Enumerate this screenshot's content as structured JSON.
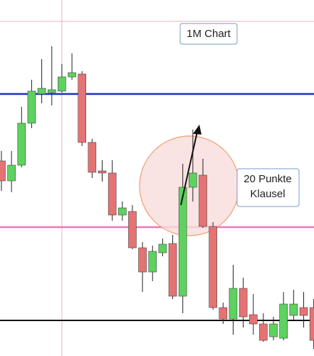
{
  "chart_data": {
    "type": "candlestick",
    "annotations": [
      "1M Chart",
      [
        "20 Punkte",
        "Klausel"
      ]
    ],
    "open": [
      274,
      246,
      268,
      327,
      368,
      370,
      372,
      392,
      396,
      300,
      260,
      257,
      198,
      203,
      152,
      118,
      145,
      158,
      84,
      237,
      254,
      182,
      68,
      52,
      95,
      58,
      45,
      27,
      25,
      57,
      68,
      68
    ],
    "high": [
      288,
      288,
      350,
      388,
      417,
      435,
      410,
      425,
      400,
      305,
      275,
      275,
      217,
      212,
      160,
      155,
      165,
      170,
      270,
      318,
      277,
      188,
      75,
      128,
      110,
      87,
      60,
      55,
      90,
      93,
      90,
      80
    ],
    "low": [
      232,
      230,
      265,
      320,
      355,
      352,
      370,
      388,
      295,
      250,
      245,
      190,
      190,
      150,
      90,
      105,
      140,
      80,
      60,
      217,
      180,
      65,
      45,
      30,
      40,
      30,
      20,
      22,
      22,
      50,
      40,
      10
    ],
    "close": [
      246,
      268,
      327,
      372,
      376,
      374,
      392,
      398,
      300,
      258,
      257,
      198,
      208,
      152,
      118,
      147,
      157,
      84,
      237,
      257,
      182,
      68,
      52,
      95,
      55,
      45,
      22,
      45,
      73,
      73,
      57,
      22
    ],
    "up_color": "#5ed25e",
    "down_color": "#e57373",
    "ylim": [
      0,
      500
    ],
    "levels": [
      {
        "value": 470,
        "color": "#f4b0b0",
        "width": 1
      },
      {
        "value": 368,
        "color": "#1a2fc0",
        "width": 2.5
      },
      {
        "value": 181,
        "color": "#ee77b8",
        "width": 2.5
      },
      {
        "value": 50,
        "color": "#111111",
        "width": 2
      }
    ],
    "marker_candle": 6,
    "marker_color": "#f4b0b0"
  }
}
